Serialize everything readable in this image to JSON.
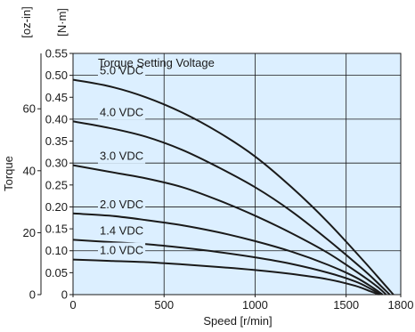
{
  "chart_data": {
    "type": "line",
    "title": "",
    "xlabel": "Speed [r/min]",
    "ylabel": "Torque",
    "y_unit_primary": "[N·m]",
    "y_unit_secondary": "[oz-in]",
    "xlim": [
      0,
      1800
    ],
    "ylim": [
      0,
      0.55
    ],
    "x_ticks": [
      "0",
      "500",
      "1000",
      "1500",
      "1800"
    ],
    "y_ticks": [
      "0",
      "0.05",
      "0.10",
      "0.15",
      "0.20",
      "0.25",
      "0.30",
      "0.35",
      "0.40",
      "0.45",
      "0.50",
      "0.55"
    ],
    "y2_ticks": [
      "0",
      "20",
      "40",
      "60"
    ],
    "y2_tick_values_nm": [
      0,
      0.1412,
      0.2825,
      0.4237
    ],
    "grid": true,
    "background_color": "#dcefff",
    "line_color": "#1a1a1a",
    "legend_title": "Torque Setting Voltage",
    "series": [
      {
        "name": "5.0 VDC",
        "x": [
          0,
          200,
          400,
          600,
          800,
          1000,
          1200,
          1400,
          1600,
          1700,
          1760
        ],
        "y": [
          0.49,
          0.475,
          0.45,
          0.415,
          0.37,
          0.315,
          0.245,
          0.165,
          0.075,
          0.028,
          0
        ]
      },
      {
        "name": "4.0 VDC",
        "x": [
          0,
          200,
          400,
          600,
          800,
          1000,
          1200,
          1400,
          1600,
          1690,
          1740
        ],
        "y": [
          0.395,
          0.38,
          0.36,
          0.33,
          0.29,
          0.245,
          0.19,
          0.125,
          0.055,
          0.02,
          0
        ]
      },
      {
        "name": "3.0 VDC",
        "x": [
          0,
          200,
          400,
          600,
          800,
          1000,
          1200,
          1400,
          1600,
          1680,
          1720
        ],
        "y": [
          0.295,
          0.28,
          0.265,
          0.245,
          0.215,
          0.18,
          0.14,
          0.095,
          0.04,
          0.015,
          0
        ]
      },
      {
        "name": "2.0 VDC",
        "x": [
          0,
          200,
          400,
          600,
          800,
          1000,
          1200,
          1400,
          1550,
          1650,
          1700
        ],
        "y": [
          0.185,
          0.18,
          0.17,
          0.158,
          0.142,
          0.122,
          0.098,
          0.068,
          0.04,
          0.015,
          0
        ]
      },
      {
        "name": "1.4 VDC",
        "x": [
          0,
          200,
          400,
          600,
          800,
          1000,
          1200,
          1400,
          1550,
          1640,
          1690
        ],
        "y": [
          0.125,
          0.12,
          0.115,
          0.107,
          0.097,
          0.085,
          0.07,
          0.05,
          0.03,
          0.012,
          0
        ]
      },
      {
        "name": "1.0 VDC",
        "x": [
          0,
          200,
          400,
          600,
          800,
          1000,
          1200,
          1400,
          1550,
          1630,
          1680
        ],
        "y": [
          0.08,
          0.077,
          0.074,
          0.069,
          0.063,
          0.056,
          0.047,
          0.035,
          0.02,
          0.008,
          0
        ]
      }
    ]
  }
}
